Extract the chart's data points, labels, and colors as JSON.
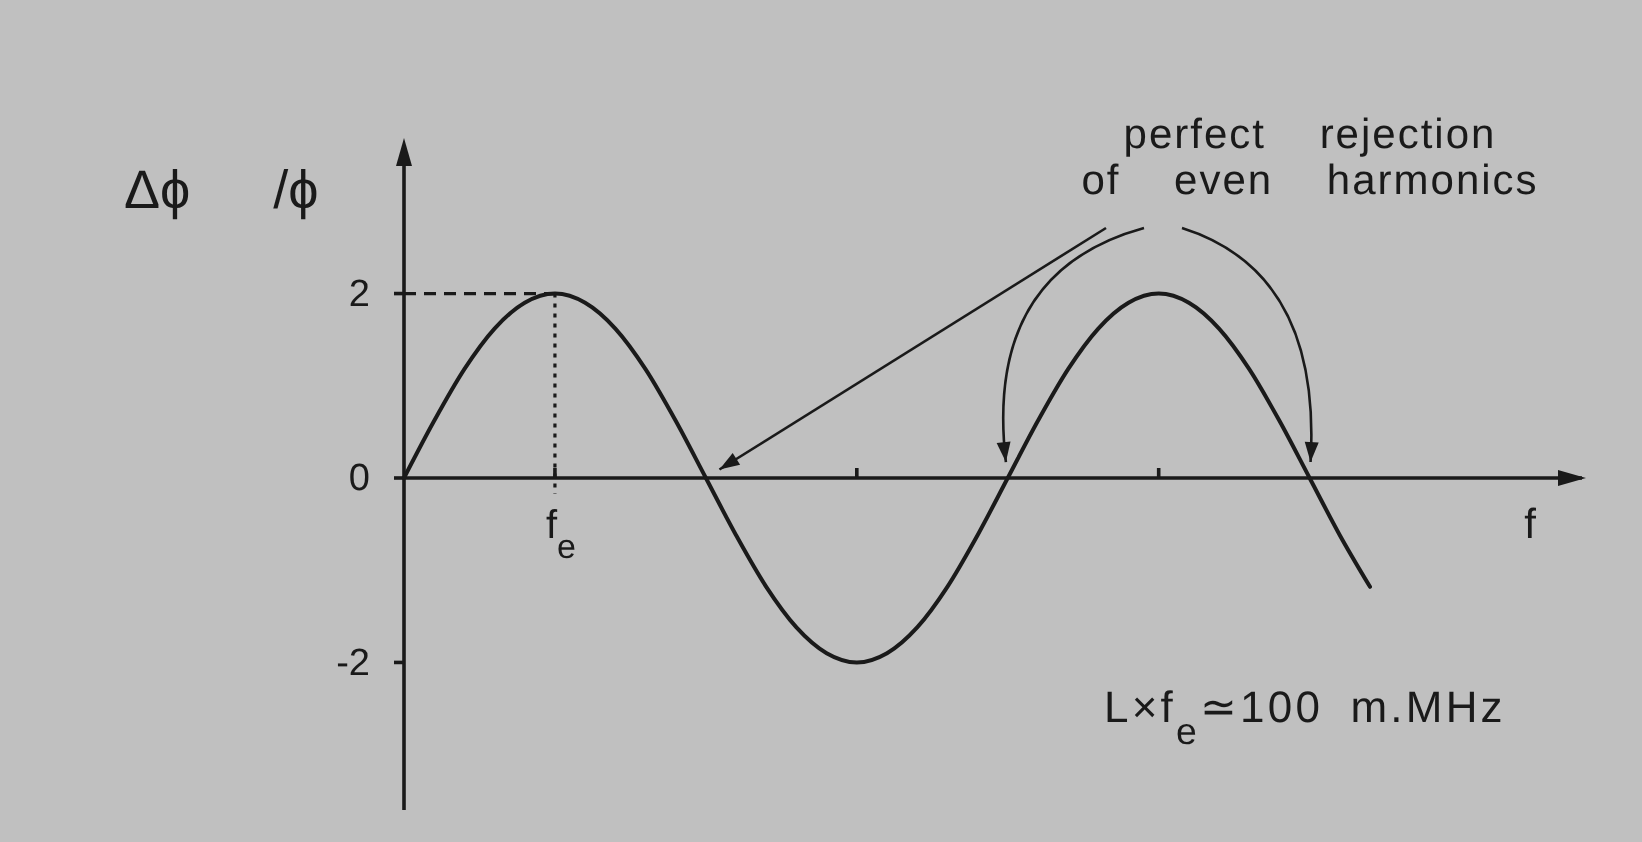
{
  "chart_data": {
    "type": "line",
    "xlabel": "f",
    "ylabel": "Δϕ /ϕ",
    "categories": [
      null,
      null,
      null,
      null,
      null,
      "f$_{e}$",
      null,
      null,
      null,
      null,
      null,
      null,
      null,
      null,
      null,
      null,
      null,
      null,
      null,
      null,
      null,
      null,
      null,
      null,
      null,
      null,
      null,
      null,
      null,
      null,
      null,
      null,
      null
    ],
    "series": [
      {
        "color": "#1a1a1a",
        "values": [
          0,
          0.62,
          1.18,
          1.62,
          1.9,
          2,
          1.9,
          1.62,
          1.18,
          0.62,
          0,
          -0.62,
          -1.18,
          -1.62,
          -1.9,
          -2,
          -1.9,
          -1.62,
          -1.18,
          -0.62,
          0,
          0.62,
          1.18,
          1.62,
          1.9,
          2,
          1.9,
          1.62,
          1.18,
          0.62,
          0,
          -0.62,
          -1.18
        ]
      }
    ],
    "ylim": [
      -3.6,
      3.6
    ],
    "yticks": [
      -2,
      0,
      2
    ],
    "ref_lines": [
      {
        "axis": "y",
        "value": 2,
        "line_style": "dashed"
      },
      {
        "axis": "x",
        "value": "f$_{e}$",
        "line_style": "dotted"
      }
    ],
    "annotations": [
      "perfect rejection\nof even harmonics",
      "L×f$_{e}$≃100 m.MHz"
    ]
  }
}
